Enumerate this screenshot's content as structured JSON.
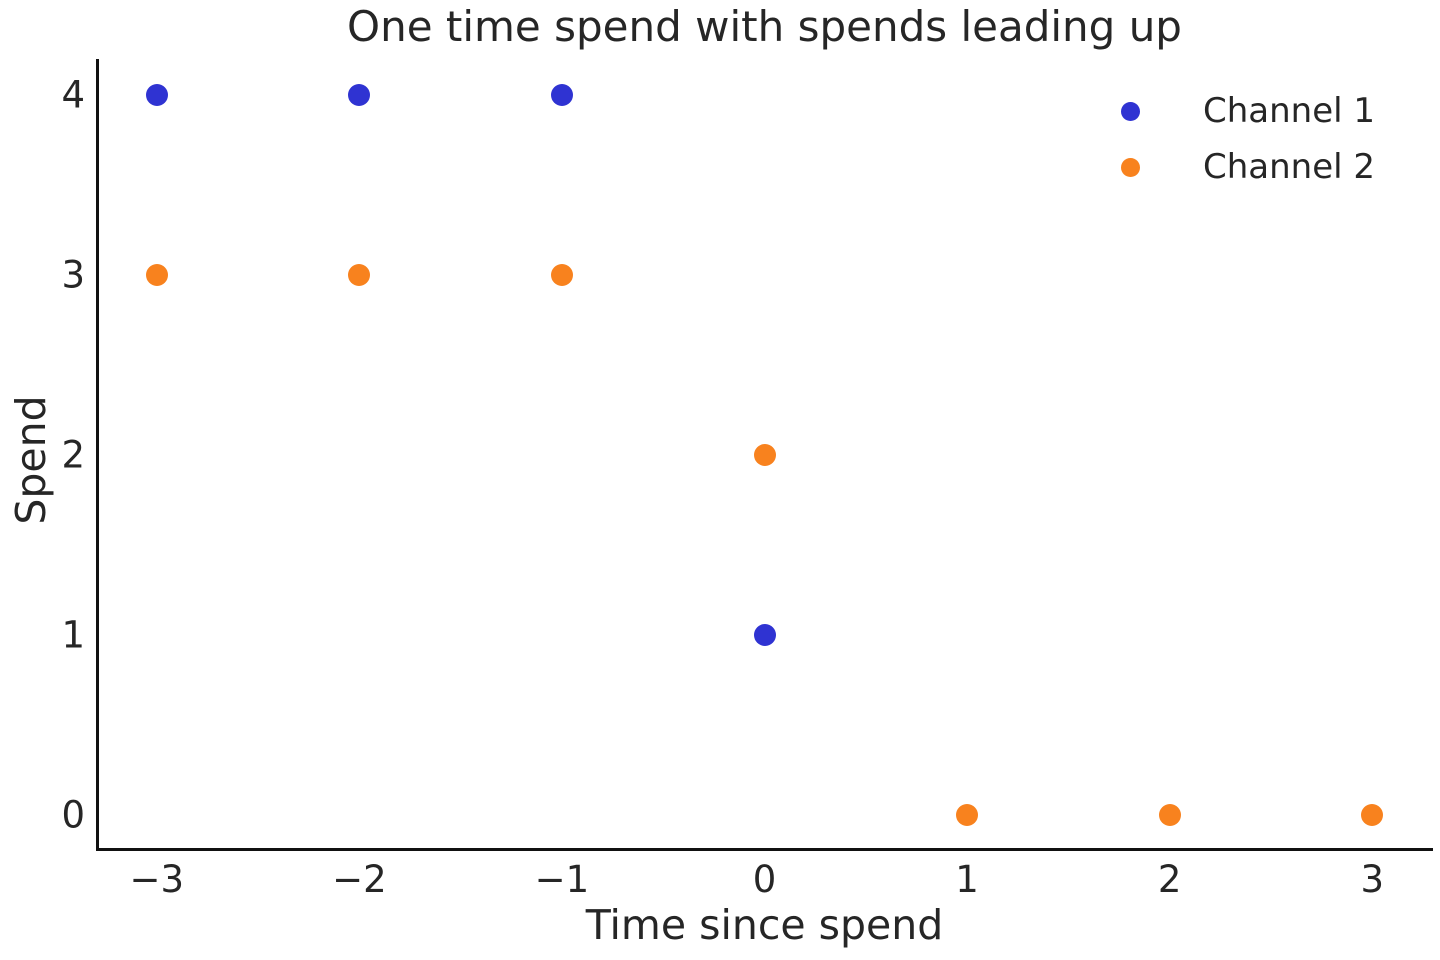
{
  "chart_data": {
    "type": "scatter",
    "title": "One time spend with spends leading up",
    "xlabel": "Time since spend",
    "ylabel": "Spend",
    "xlim": [
      -3.3,
      3.3
    ],
    "ylim": [
      -0.2,
      4.2
    ],
    "grid": false,
    "legend_position": "upper right",
    "x_ticks": [
      {
        "value": -3,
        "label": "−3"
      },
      {
        "value": -2,
        "label": "−2"
      },
      {
        "value": -1,
        "label": "−1"
      },
      {
        "value": 0,
        "label": "0"
      },
      {
        "value": 1,
        "label": "1"
      },
      {
        "value": 2,
        "label": "2"
      },
      {
        "value": 3,
        "label": "3"
      }
    ],
    "y_ticks": [
      {
        "value": 0,
        "label": "0"
      },
      {
        "value": 1,
        "label": "1"
      },
      {
        "value": 2,
        "label": "2"
      },
      {
        "value": 3,
        "label": "3"
      },
      {
        "value": 4,
        "label": "4"
      }
    ],
    "series": [
      {
        "name": "Channel 1",
        "color": "#2f33d2",
        "points": [
          {
            "x": -3,
            "y": 4
          },
          {
            "x": -2,
            "y": 4
          },
          {
            "x": -1,
            "y": 4
          },
          {
            "x": 0,
            "y": 1
          }
        ]
      },
      {
        "name": "Channel 2",
        "color": "#f8821e",
        "points": [
          {
            "x": -3,
            "y": 3
          },
          {
            "x": -2,
            "y": 3
          },
          {
            "x": -1,
            "y": 3
          },
          {
            "x": 0,
            "y": 2
          },
          {
            "x": 1,
            "y": 0
          },
          {
            "x": 2,
            "y": 0
          },
          {
            "x": 3,
            "y": 0
          }
        ]
      }
    ],
    "colors": {
      "text": "#262626",
      "spine": "#111111",
      "background": "#ffffff"
    }
  }
}
